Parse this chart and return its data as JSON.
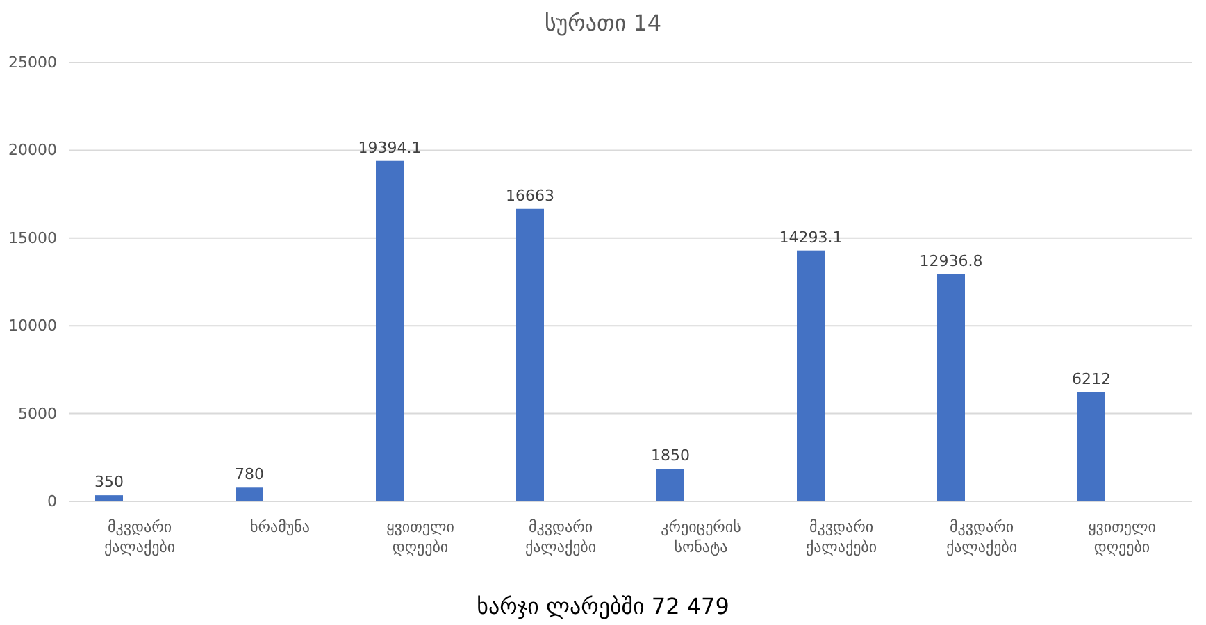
{
  "chart_data": {
    "type": "bar",
    "title": "სურათი 14",
    "xlabel": "ხარჯი ლარებში 72 479",
    "categories": [
      "მკვდარი ქალაქები",
      "ხრამუნა",
      "ყვითელი დღეები",
      "მკვდარი ქალაქები",
      "კრეიცერის სონატა",
      "მკვდარი ქალაქები",
      "მკვდარი ქალაქები",
      "ყვითელი დღეები"
    ],
    "values": [
      350,
      780,
      19394.1,
      16663,
      1850,
      14293.1,
      12936.8,
      6212
    ],
    "color": "#4472c4",
    "ylim": [
      0,
      25000
    ],
    "yticks": [
      0,
      5000,
      10000,
      15000,
      20000,
      25000
    ],
    "grid": "y",
    "data_labels": true
  }
}
